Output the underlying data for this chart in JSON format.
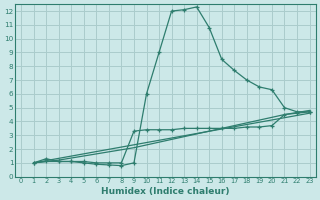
{
  "xlabel": "Humidex (Indice chaleur)",
  "background_color": "#cce8e8",
  "grid_color": "#aacccc",
  "line_color": "#2e7d6e",
  "xlim": [
    -0.5,
    23.5
  ],
  "ylim": [
    0,
    12.5
  ],
  "xticks": [
    0,
    1,
    2,
    3,
    4,
    5,
    6,
    7,
    8,
    9,
    10,
    11,
    12,
    13,
    14,
    15,
    16,
    17,
    18,
    19,
    20,
    21,
    22,
    23
  ],
  "yticks": [
    0,
    1,
    2,
    3,
    4,
    5,
    6,
    7,
    8,
    9,
    10,
    11,
    12
  ],
  "line1_x": [
    1,
    2,
    3,
    4,
    5,
    6,
    7,
    8,
    9,
    10,
    11,
    12,
    13,
    14,
    15,
    16,
    17,
    18,
    19,
    20,
    21,
    22,
    23
  ],
  "line1_y": [
    1.0,
    1.3,
    1.1,
    1.1,
    1.0,
    0.9,
    0.85,
    0.8,
    1.0,
    6.0,
    9.0,
    12.0,
    12.1,
    12.3,
    10.8,
    8.5,
    7.7,
    7.0,
    6.5,
    6.3,
    5.0,
    4.7,
    4.7
  ],
  "line2_x": [
    1,
    2,
    3,
    4,
    5,
    6,
    7,
    8,
    9,
    10,
    11,
    12,
    13,
    14,
    15,
    16,
    17,
    18,
    19,
    20,
    21,
    22,
    23
  ],
  "line2_y": [
    1.0,
    1.1,
    1.1,
    1.1,
    1.1,
    1.0,
    1.0,
    1.0,
    3.3,
    3.4,
    3.4,
    3.4,
    3.5,
    3.5,
    3.5,
    3.5,
    3.5,
    3.6,
    3.6,
    3.7,
    4.5,
    4.6,
    4.7
  ],
  "line3_x": [
    1,
    2,
    3,
    4,
    5,
    6,
    7,
    8,
    9,
    10,
    11,
    12,
    13,
    14,
    15,
    16,
    17,
    18,
    19,
    20,
    21,
    22,
    23
  ],
  "line3_y": [
    1.0,
    1.1,
    1.2,
    1.35,
    1.5,
    1.65,
    1.8,
    1.95,
    2.1,
    2.3,
    2.5,
    2.7,
    2.9,
    3.1,
    3.3,
    3.5,
    3.7,
    3.9,
    4.1,
    4.3,
    4.5,
    4.65,
    4.8
  ],
  "line4_x": [
    1,
    23
  ],
  "line4_y": [
    1.0,
    4.6
  ]
}
